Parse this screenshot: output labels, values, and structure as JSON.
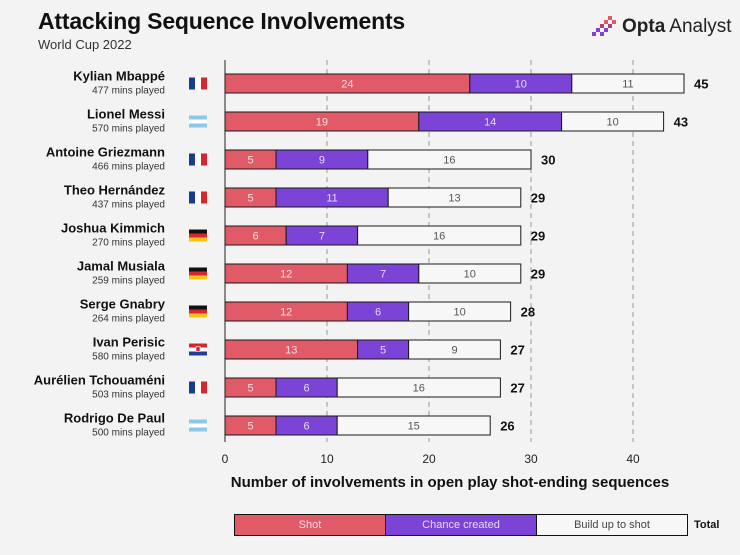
{
  "header": {
    "title": "Attacking Sequence Involvements",
    "subtitle": "World Cup 2022",
    "brand_name": "Opta",
    "brand_sub": "Analyst"
  },
  "colors": {
    "shot": "#e05a68",
    "chance": "#7b44d6",
    "buildup": "#f7f7f7",
    "background": "#f3f3f3"
  },
  "legend": {
    "shot_label": "Shot",
    "chance_label": "Chance created",
    "buildup_label": "Build up to shot",
    "total_label": "Total"
  },
  "chart_data": {
    "type": "bar",
    "orientation": "horizontal",
    "stacked": true,
    "xlabel": "Number of involvements in open play shot-ending sequences",
    "xlim": [
      0,
      45
    ],
    "xticks": [
      0,
      10,
      20,
      30,
      40
    ],
    "grid": "vertical dashed",
    "legend_placement": "bottom",
    "categories": [
      {
        "name": "Kylian Mbappé",
        "minutes": "477 mins played",
        "flag": "france-flag"
      },
      {
        "name": "Lionel Messi",
        "minutes": "570 mins played",
        "flag": "argentina-flag"
      },
      {
        "name": "Antoine Griezmann",
        "minutes": "466 mins played",
        "flag": "france-flag"
      },
      {
        "name": "Theo Hernández",
        "minutes": "437 mins played",
        "flag": "france-flag"
      },
      {
        "name": "Joshua Kimmich",
        "minutes": "270 mins played",
        "flag": "germany-flag"
      },
      {
        "name": "Jamal Musiala",
        "minutes": "259 mins played",
        "flag": "germany-flag"
      },
      {
        "name": "Serge Gnabry",
        "minutes": "264 mins played",
        "flag": "germany-flag"
      },
      {
        "name": "Ivan Perisic",
        "minutes": "580 mins played",
        "flag": "croatia-flag"
      },
      {
        "name": "Aurélien Tchouaméni",
        "minutes": "503 mins played",
        "flag": "france-flag"
      },
      {
        "name": "Rodrigo De Paul",
        "minutes": "500 mins played",
        "flag": "argentina-flag"
      }
    ],
    "series": [
      {
        "name": "Shot",
        "values": [
          24,
          19,
          5,
          5,
          6,
          12,
          12,
          13,
          5,
          5
        ]
      },
      {
        "name": "Chance created",
        "values": [
          10,
          14,
          9,
          11,
          7,
          7,
          6,
          5,
          6,
          6
        ]
      },
      {
        "name": "Build up to shot",
        "values": [
          11,
          10,
          16,
          13,
          16,
          10,
          10,
          9,
          16,
          15
        ]
      }
    ],
    "totals": [
      45,
      43,
      30,
      29,
      29,
      29,
      28,
      27,
      27,
      26
    ]
  }
}
